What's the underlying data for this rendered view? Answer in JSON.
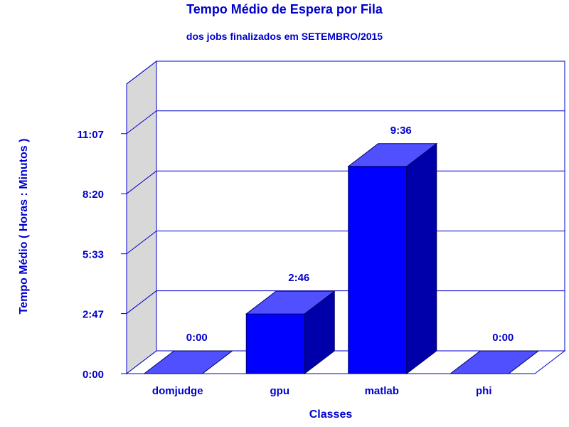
{
  "chart_data": {
    "type": "bar",
    "title": "Tempo Médio de Espera por Fila",
    "subtitle": "dos jobs finalizados em SETEMBRO/2015",
    "xlabel": "Classes",
    "ylabel": "Tempo Médio ( Horas : Minutos )",
    "categories": [
      "domjudge",
      "gpu",
      "matlab",
      "phi"
    ],
    "values_minutes": [
      0,
      166,
      576,
      0
    ],
    "data_labels": [
      "0:00",
      "2:46",
      "9:36",
      "0:00"
    ],
    "y_ticks_minutes": [
      0,
      167,
      333,
      500,
      667
    ],
    "y_tick_labels": [
      "0:00",
      "2:47",
      "5:33",
      "8:20",
      "11:07"
    ],
    "ylim_minutes": [
      0,
      805
    ],
    "grid": true,
    "legend": "none",
    "colors": {
      "bar_front": "#0000ff",
      "bar_top": "#5050ff",
      "bar_side": "#0000aa",
      "axis": "#0000cc",
      "back_wall": "#ffffff",
      "side_wall": "#d8d8d8",
      "text": "#0000cc"
    }
  }
}
